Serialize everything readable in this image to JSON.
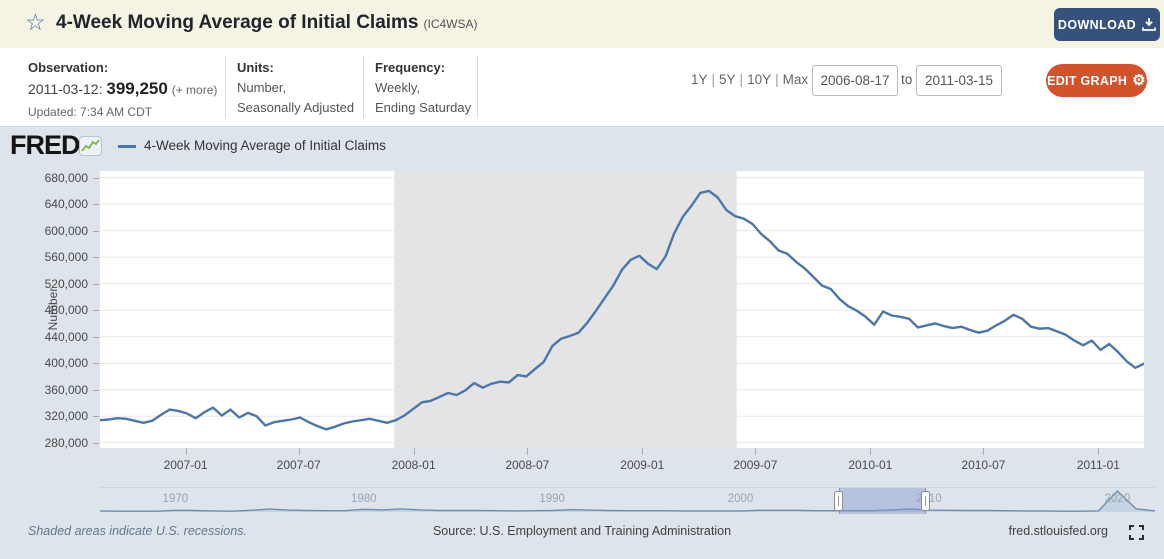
{
  "colors": {
    "header_bg": "#f5f3e4",
    "chart_bg": "#dde4eb",
    "download_button": "#36517c",
    "edit_button": "#d3522a",
    "line": "#4b76ab",
    "recession": "#e4e4e4",
    "gridline": "#e8e8e8",
    "link": "#4a6fa5"
  },
  "header": {
    "title": "4-Week Moving Average of Initial Claims",
    "series_id": "(IC4WSA)",
    "download_label": "DOWNLOAD"
  },
  "info_bar": {
    "observation": {
      "label": "Observation:",
      "date": "2011-03-12:",
      "value": "399,250",
      "more": "(+ more)",
      "updated": "Updated: 7:34 AM CDT"
    },
    "units": {
      "label": "Units:",
      "line1": "Number,",
      "line2": "Seasonally Adjusted"
    },
    "frequency": {
      "label": "Frequency:",
      "line1": "Weekly,",
      "line2": "Ending Saturday"
    },
    "range_shortcuts": [
      "1Y",
      "5Y",
      "10Y",
      "Max"
    ],
    "range_separator": "|",
    "date_from": "2006-08-17",
    "to_label": "to",
    "date_to": "2011-03-15",
    "edit_graph_label": "EDIT GRAPH",
    "gear_icon": "⚙"
  },
  "brand": {
    "name": "FRED",
    "mark": "®"
  },
  "legend": {
    "series_label": "4-Week Moving Average of Initial Claims"
  },
  "chart_data": {
    "type": "line",
    "title": "4-Week Moving Average of Initial Claims",
    "series_id": "IC4WSA",
    "ylabel": "Number",
    "ylim": [
      272000,
      690000
    ],
    "y_ticks": [
      280000,
      320000,
      360000,
      400000,
      440000,
      480000,
      520000,
      560000,
      600000,
      640000,
      680000
    ],
    "x_ticks": [
      "2007-01",
      "2007-07",
      "2008-01",
      "2008-07",
      "2009-01",
      "2009-07",
      "2010-01",
      "2010-07",
      "2011-01"
    ],
    "x_start": "2006-08-17",
    "x_end": "2011-03-15",
    "point_interval_weeks": 2,
    "grid": "horizontal",
    "recession_bands": [
      [
        "2007-12-01",
        "2009-06-01"
      ]
    ],
    "series": [
      {
        "name": "4-Week Moving Average of Initial Claims",
        "color": "#4b76ab",
        "values": [
          314000,
          315000,
          317000,
          316000,
          313000,
          310000,
          313000,
          322000,
          330000,
          328000,
          324000,
          317000,
          326000,
          333000,
          321000,
          330000,
          318000,
          325000,
          320000,
          306000,
          311000,
          313000,
          315000,
          318000,
          311000,
          305000,
          300000,
          304000,
          309000,
          312000,
          314000,
          316000,
          313000,
          310000,
          314000,
          321000,
          331000,
          341000,
          343000,
          349000,
          355000,
          352000,
          359000,
          370000,
          363000,
          369000,
          372000,
          371000,
          382000,
          380000,
          391000,
          402000,
          426000,
          437000,
          441000,
          446000,
          461000,
          479000,
          498000,
          517000,
          541000,
          556000,
          562000,
          550000,
          542000,
          561000,
          596000,
          621000,
          638000,
          657000,
          660000,
          650000,
          631000,
          622000,
          618000,
          610000,
          595000,
          584000,
          570000,
          565000,
          553000,
          543000,
          530000,
          517000,
          512000,
          497000,
          486000,
          479000,
          470000,
          458000,
          478000,
          472000,
          470000,
          467000,
          454000,
          457000,
          460000,
          456000,
          453000,
          455000,
          450000,
          446000,
          449000,
          457000,
          464000,
          473000,
          467000,
          455000,
          452000,
          453000,
          448000,
          443000,
          434000,
          427000,
          434000,
          420000,
          429000,
          417000,
          403000,
          393000,
          399250
        ]
      }
    ],
    "minimap": {
      "start_year": 1966,
      "end_year": 2022,
      "decade_labels": [
        "1970",
        "1980",
        "1990",
        "2000",
        "2010",
        "2020"
      ],
      "selected_range": [
        "2006-08-17",
        "2011-03-15"
      ],
      "values": [
        0.05,
        0.04,
        0.04,
        0.04,
        0.08,
        0.07,
        0.05,
        0.04,
        0.08,
        0.14,
        0.09,
        0.07,
        0.06,
        0.06,
        0.13,
        0.1,
        0.15,
        0.1,
        0.07,
        0.07,
        0.07,
        0.06,
        0.05,
        0.06,
        0.07,
        0.11,
        0.09,
        0.07,
        0.06,
        0.06,
        0.06,
        0.05,
        0.05,
        0.05,
        0.05,
        0.08,
        0.08,
        0.08,
        0.06,
        0.06,
        0.06,
        0.06,
        0.1,
        0.15,
        0.09,
        0.08,
        0.07,
        0.07,
        0.06,
        0.05,
        0.05,
        0.04,
        0.04,
        0.05,
        1.0,
        0.15,
        0.05
      ]
    }
  },
  "footer": {
    "note": "Shaded areas indicate U.S. recessions.",
    "source": "Source: U.S. Employment and Training Administration",
    "url": "fred.stlouisfed.org"
  }
}
